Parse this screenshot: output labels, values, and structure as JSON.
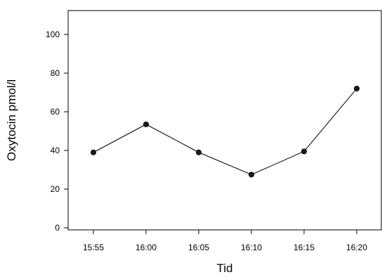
{
  "chart_data": {
    "type": "line",
    "title": "",
    "xlabel": "Tid",
    "ylabel": "Oxytocin pmol/l",
    "categories": [
      "15:55",
      "16:00",
      "16:05",
      "16:10",
      "16:15",
      "16:20"
    ],
    "series": [
      {
        "values": [
          39,
          53.5,
          39,
          27.5,
          39.5,
          72
        ]
      }
    ],
    "ylim": [
      0,
      110
    ],
    "yticks": [
      0,
      20,
      40,
      60,
      80,
      100
    ],
    "ytick_labels": [
      "0",
      "20",
      "40",
      "60",
      "80",
      "100"
    ],
    "grid": false,
    "legend": "none",
    "colors": {
      "line": "#000000",
      "marker": "#1a1a1a",
      "axis": "#000000"
    }
  }
}
